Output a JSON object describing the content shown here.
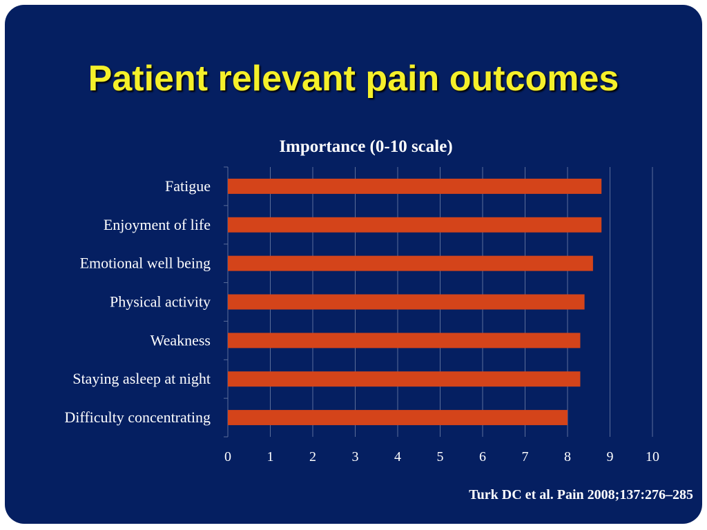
{
  "title": "Patient relevant pain outcomes",
  "citation": "Turk DC et al. Pain 2008;137:276–285",
  "colors": {
    "background": "#051f61",
    "title": "#f5f02a",
    "bar": "#d4441a",
    "text": "#ffffff",
    "grid": "#5c6e9a"
  },
  "chart_data": {
    "type": "bar",
    "orientation": "horizontal",
    "title": "Importance (0-10 scale)",
    "xlabel": "",
    "ylabel": "",
    "categories": [
      "Fatigue",
      "Enjoyment of life",
      "Emotional well being",
      "Physical activity",
      "Weakness",
      "Staying asleep at night",
      "Difficulty concentrating"
    ],
    "values": [
      8.8,
      8.8,
      8.6,
      8.4,
      8.3,
      8.3,
      8.0
    ],
    "xlim": [
      0,
      10
    ],
    "xticks": [
      "0",
      "1",
      "2",
      "3",
      "4",
      "5",
      "6",
      "7",
      "8",
      "9",
      "10"
    ],
    "grid": true,
    "legend": "none"
  }
}
